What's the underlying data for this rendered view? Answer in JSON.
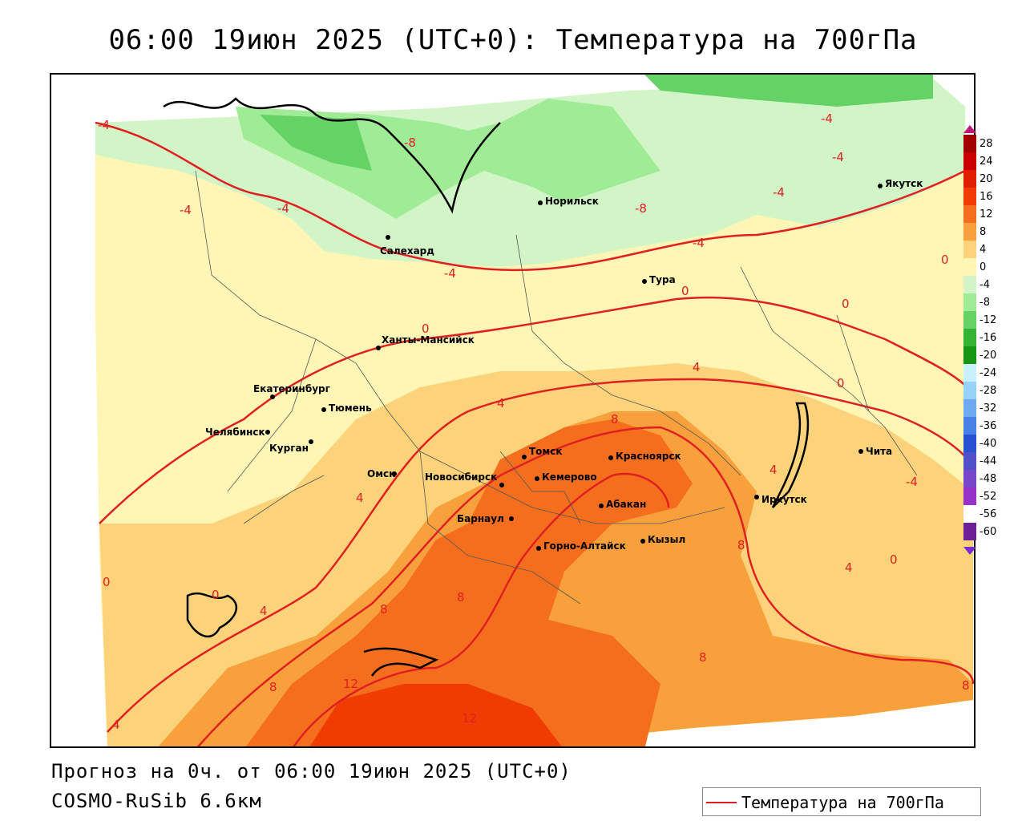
{
  "title": "06:00 19июн 2025 (UTC+0): Температура на 700гПа",
  "footer": {
    "forecast": "Прогноз на 0ч. от 06:00 19июн 2025 (UTC+0)",
    "model": "COSMO-RuSib 6.6км"
  },
  "legend": {
    "label": "Температура на 700гПа",
    "color": "#e02020"
  },
  "colorbar": {
    "labels": [
      "28",
      "24",
      "20",
      "16",
      "12",
      "8",
      "4",
      "0",
      "-4",
      "-8",
      "-12",
      "-16",
      "-20",
      "-24",
      "-28",
      "-32",
      "-36",
      "-40",
      "-44",
      "-48",
      "-52",
      "-56",
      "-60"
    ],
    "colors": [
      "#a00000",
      "#c80000",
      "#e01e00",
      "#f03c00",
      "#f56e1e",
      "#f8a03c",
      "#fcd27a",
      "#fff5b4",
      "#d2f5c8",
      "#a0eb96",
      "#64d264",
      "#32b432",
      "#149614",
      "#c8f0ff",
      "#96d2fa",
      "#6eaaf0",
      "#4682e6",
      "#2850d2",
      "#5050c8",
      "#7846c8",
      "#9632c8",
      "#ffffff",
      "#6e1e96"
    ]
  },
  "cities": [
    {
      "name": "Якутск"
    },
    {
      "name": "Норильск"
    },
    {
      "name": "Салехард"
    },
    {
      "name": "Тура"
    },
    {
      "name": "Ханты-Мансийск"
    },
    {
      "name": "Екатеринбург"
    },
    {
      "name": "Тюмень"
    },
    {
      "name": "Челябинск"
    },
    {
      "name": "Курган"
    },
    {
      "name": "Омск"
    },
    {
      "name": "Новосибирск"
    },
    {
      "name": "Томск"
    },
    {
      "name": "Кемерово"
    },
    {
      "name": "Красноярск"
    },
    {
      "name": "Абакан"
    },
    {
      "name": "Барнаул"
    },
    {
      "name": "Горно-Алтайск"
    },
    {
      "name": "Кызыл"
    },
    {
      "name": "Иркутск"
    },
    {
      "name": "Чита"
    }
  ],
  "isotherm_labels": [
    "-4",
    "-8",
    "-4",
    "-4",
    "-4",
    "-4",
    "-8",
    "-4",
    "-4",
    "-4",
    "0",
    "0",
    "0",
    "0",
    "0",
    "4",
    "4",
    "8",
    "4",
    "8",
    "4",
    "8",
    "12",
    "12",
    "8",
    "8",
    "8",
    "0",
    "0",
    "0",
    "4",
    "4",
    "-4",
    "4",
    "8"
  ]
}
